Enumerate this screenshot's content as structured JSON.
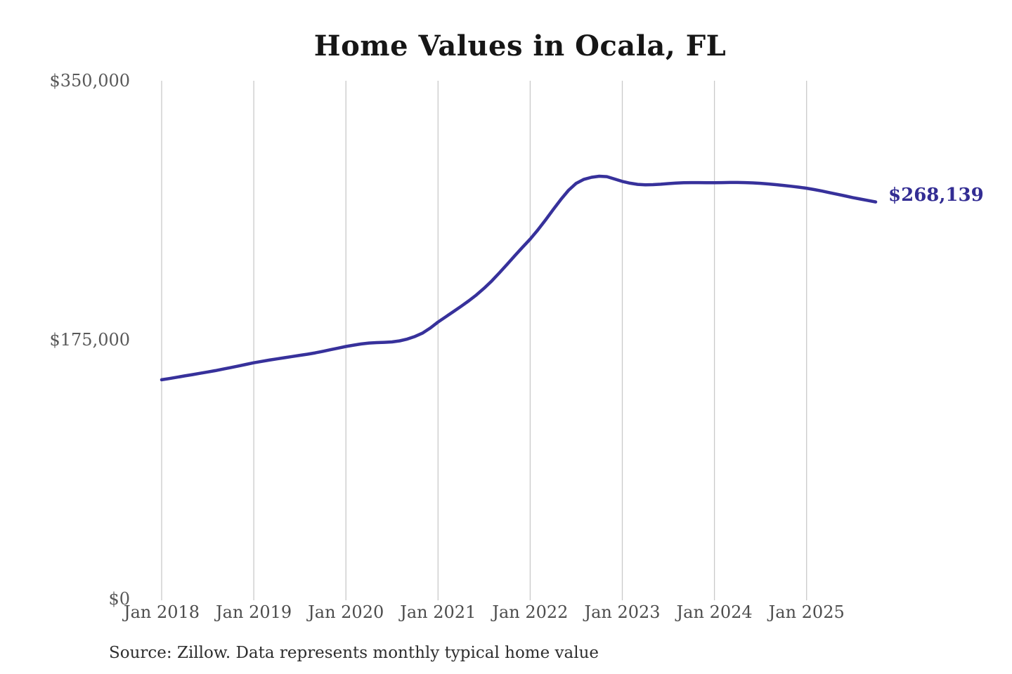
{
  "title": "Home Values in Ocala, FL",
  "source_note": "Source: Zillow. Data represents monthly typical home value",
  "colors": {
    "line": "#37319b",
    "latest_label": "#332d93",
    "gridline": "#c9c9c9",
    "title_text": "#161616",
    "axis_text": "#4d4d4d",
    "background": "#ffffff"
  },
  "chart_data": {
    "type": "line",
    "title": "Home Values in Ocala, FL",
    "xlabel": "",
    "ylabel": "",
    "ylim": [
      0,
      350000
    ],
    "grid": "vertical-only",
    "legend": "none",
    "y_ticks": [
      {
        "value": 350000,
        "label": "$350,000"
      },
      {
        "value": 175000,
        "label": "$175,000"
      },
      {
        "value": 0,
        "label": "$0"
      }
    ],
    "x_ticks": [
      "Jan 2018",
      "Jan 2019",
      "Jan 2020",
      "Jan 2021",
      "Jan 2022",
      "Jan 2023",
      "Jan 2024",
      "Jan 2025"
    ],
    "x_start": "2018-01",
    "x_end": "2025-10",
    "x_interval": "monthly",
    "latest_value": 268139,
    "latest_value_label": "$268,139",
    "series": [
      {
        "name": "Typical home value",
        "values": [
          148000,
          148800,
          149700,
          150600,
          151500,
          152400,
          153300,
          154200,
          155200,
          156200,
          157300,
          158400,
          159500,
          160400,
          161300,
          162100,
          162900,
          163700,
          164500,
          165300,
          166200,
          167200,
          168300,
          169400,
          170500,
          171400,
          172200,
          172800,
          173100,
          173300,
          173600,
          174300,
          175500,
          177300,
          179600,
          183000,
          187000,
          190500,
          194000,
          197600,
          201300,
          205300,
          209800,
          214800,
          220300,
          226000,
          231800,
          237500,
          243000,
          249200,
          256000,
          263000,
          269800,
          276000,
          280700,
          283400,
          284800,
          285500,
          285200,
          283600,
          282000,
          280800,
          280000,
          279700,
          279800,
          280100,
          280500,
          280900,
          281100,
          281200,
          281200,
          281100,
          281100,
          281200,
          281300,
          281300,
          281200,
          281000,
          280700,
          280300,
          279800,
          279300,
          278700,
          278100,
          277400,
          276500,
          275500,
          274400,
          273300,
          272200,
          271100,
          270100,
          269100,
          268139
        ]
      }
    ]
  }
}
